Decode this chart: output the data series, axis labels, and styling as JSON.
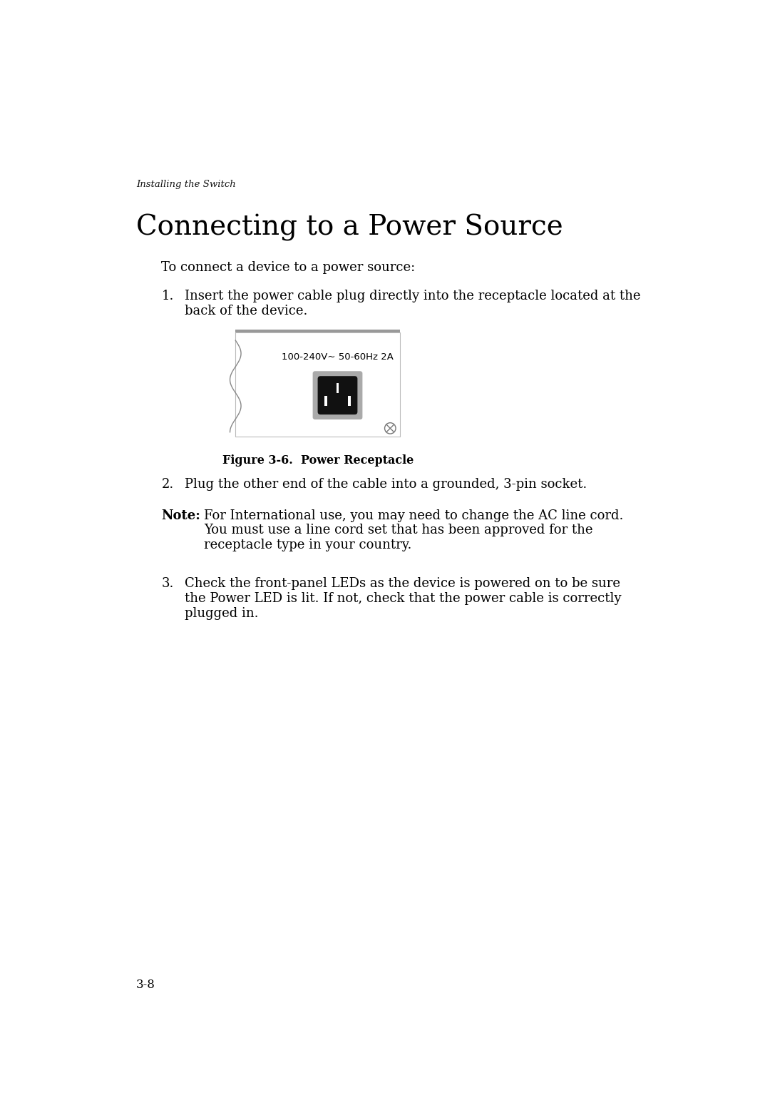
{
  "bg_color": "#ffffff",
  "header_text": "Installing the Switch",
  "title_text": "Connecting to a Power Source",
  "intro_text": "To connect a device to a power source:",
  "item1_label": "1.",
  "item1_text_line1": "Insert the power cable plug directly into the receptacle located at the",
  "item1_text_line2": "back of the device.",
  "figure_label_text": "100-240V~ 50-60Hz 2A",
  "figure_caption": "Figure 3-6.  Power Receptacle",
  "item2_label": "2.",
  "item2_text": "Plug the other end of the cable into a grounded, 3-pin socket.",
  "note_label": "Note:",
  "note_text_line1": "For International use, you may need to change the AC line cord.",
  "note_text_line2": "You must use a line cord set that has been approved for the",
  "note_text_line3": "receptacle type in your country.",
  "item3_label": "3.",
  "item3_text_line1": "Check the front-panel LEDs as the device is powered on to be sure",
  "item3_text_line2": "the Power LED is lit. If not, check that the power cable is correctly",
  "item3_text_line3": "plugged in.",
  "footer_text": "3-8",
  "text_color": "#000000",
  "header_color": "#111111",
  "line_color": "#cccccc",
  "gray_top_color": "#999999",
  "box_border_color": "#bbbbbb",
  "outlet_gray": "#aaaaaa",
  "outlet_darkgray": "#888888",
  "outlet_black": "#111111",
  "cross_color": "#777777"
}
